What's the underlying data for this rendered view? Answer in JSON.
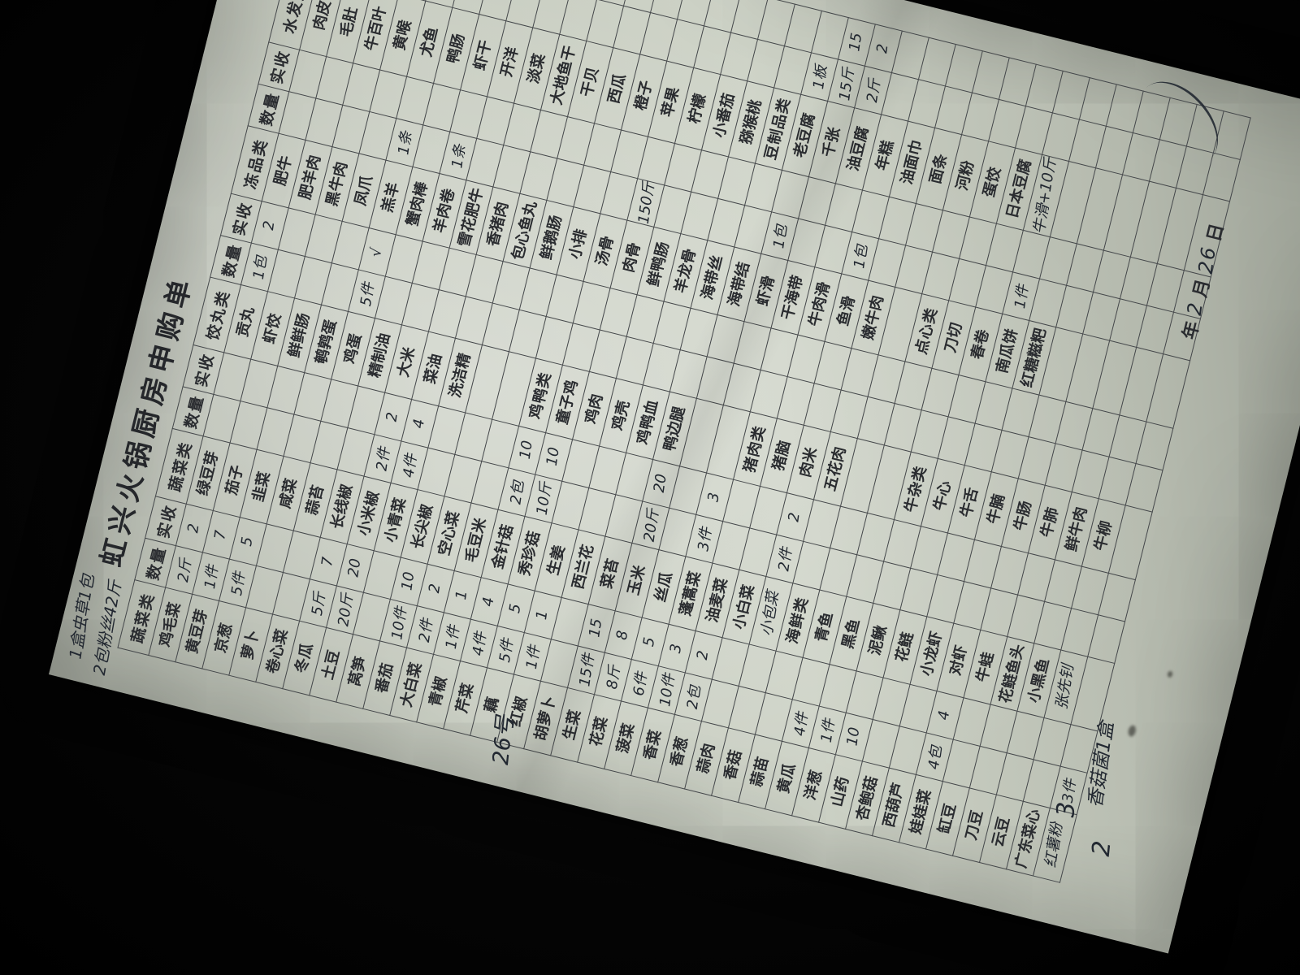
{
  "page": {
    "title": "虹兴火锅厨房申购单",
    "paper_color": "#c9cfc3",
    "ink_color": "#222831",
    "print_color": "#2a2c30"
  },
  "margin_notes": {
    "top_left_1": "1盒虫草1包",
    "top_left_2": "2包粉丝42斤",
    "left_day": "26号",
    "bottom_digit_1": "3",
    "bottom_digit_2": "2",
    "bottom_note": "香菇菌1盒"
  },
  "date_line": {
    "year_label": "年",
    "month_value": "2",
    "month_label": "月",
    "day_value": "26",
    "day_label": "日"
  },
  "table": {
    "header_groups": [
      {
        "category": "蔬菜类",
        "qty": "数量",
        "recv": "实收"
      },
      {
        "category": "蔬菜类",
        "qty": "数量",
        "recv": "实收"
      },
      {
        "category": "饺丸类",
        "qty": "数量",
        "recv": "实收"
      },
      {
        "category": "冻品类",
        "qty": "数量",
        "recv": "实收"
      },
      {
        "category": "水发类",
        "qty": "数量",
        "recv": "实收"
      }
    ],
    "rows": [
      [
        "鸡毛菜",
        "2斤",
        "2",
        "绿豆芽",
        "",
        "",
        "贡丸",
        "1包",
        "2",
        "肥牛",
        "",
        "",
        "肉皮",
        "",
        ""
      ],
      [
        "黄豆芽",
        "1件",
        "7",
        "茄子",
        "",
        "",
        "虾饺",
        "",
        "",
        "肥羊肉",
        "",
        "",
        "毛肚",
        "",
        ""
      ],
      [
        "京葱",
        "5件",
        "5",
        "韭菜",
        "",
        "",
        "鲜鲜肠",
        "",
        "",
        "黑牛肉",
        "",
        "",
        "牛百叶",
        "",
        ""
      ],
      [
        "萝卜",
        "",
        "",
        "咸菜",
        "",
        "",
        "鹌鹑蛋",
        "",
        "",
        "凤爪",
        "",
        "",
        "黄喉",
        "",
        ""
      ],
      [
        "卷心菜",
        "",
        "",
        "蒜苔",
        "",
        "",
        "鸡蛋",
        "5件",
        "√",
        "羔羊",
        "1条",
        "",
        "尤鱼",
        "",
        ""
      ],
      [
        "冬瓜",
        "5斤",
        "7",
        "长线椒",
        "",
        "",
        "精制油",
        "",
        "",
        "蟹肉棒",
        "",
        "",
        "鸭肠",
        "",
        ""
      ],
      [
        "土豆",
        "20斤",
        "20",
        "小米椒",
        "2件",
        "2",
        "大米",
        "",
        "",
        "羊肉卷",
        "1条",
        "",
        "虾干",
        "",
        ""
      ],
      [
        "莴笋",
        "",
        "",
        "小青菜",
        "4件",
        "4",
        "菜油",
        "",
        "",
        "雪花肥牛",
        "",
        "",
        "开洋",
        "",
        ""
      ],
      [
        "番茄",
        "10件",
        "10",
        "长尖椒",
        "",
        "",
        "洗洁精",
        "",
        "",
        "香猪肉",
        "",
        "",
        "淡菜",
        "",
        ""
      ],
      [
        "大白菜",
        "2件",
        "2",
        "空心菜",
        "",
        "",
        "",
        "",
        "",
        "包心鱼丸",
        "",
        "",
        "大地鱼干",
        "",
        ""
      ],
      [
        "青椒",
        "1件",
        "1",
        "毛豆米",
        "",
        "",
        "",
        "",
        "",
        "鲜鹅肠",
        "",
        "",
        "干贝",
        "",
        ""
      ],
      [
        "芹菜",
        "4件",
        "4",
        "金针菇",
        "2包",
        "10",
        "#鸡鸭类",
        "",
        "",
        "小排",
        "",
        "",
        "西瓜",
        "",
        ""
      ],
      [
        "藕",
        "5件",
        "5",
        "秀珍菇",
        "10斤",
        "10",
        "童子鸡",
        "",
        "",
        "汤骨",
        "",
        "",
        "橙子",
        "",
        ""
      ],
      [
        "红椒",
        "1件",
        "1",
        "生姜",
        "",
        "",
        "鸡肉",
        "",
        "",
        "肉骨",
        "150斤",
        "",
        "苹果",
        "",
        ""
      ],
      [
        "胡萝卜",
        "",
        "",
        "西兰花",
        "",
        "",
        "鸡壳",
        "",
        "",
        "鲜鸭肠",
        "",
        "",
        "柠檬",
        "",
        ""
      ],
      [
        "生菜",
        "15件",
        "15",
        "菜苔",
        "",
        "",
        "鸡鸭血",
        "",
        "",
        "羊龙骨",
        "",
        "",
        "小番茄",
        "",
        ""
      ],
      [
        "花菜",
        "8斤",
        "8",
        "玉米",
        "20斤",
        "20",
        "鸭边腿",
        "",
        "",
        "海带丝",
        "",
        "",
        "猕猴桃",
        "",
        ""
      ],
      [
        "菠菜",
        "6件",
        "5",
        "丝瓜",
        "",
        "",
        "",
        "",
        "",
        "海带结",
        "",
        "",
        "#豆制品类",
        "",
        ""
      ],
      [
        "香菜",
        "10件",
        "3",
        "蓬蒿菜",
        "3件",
        "3",
        "",
        "",
        "",
        "虾滑",
        "1包",
        "",
        "老豆腐",
        "1板",
        ""
      ],
      [
        "香葱",
        "2包",
        "2",
        "油麦菜",
        "",
        "",
        "#猪肉类",
        "",
        "",
        "干海带",
        "",
        "",
        "千张",
        "15斤",
        "15"
      ],
      [
        "蒜肉",
        "",
        "",
        "小白菜",
        "",
        "",
        "猪脑",
        "",
        "",
        "牛肉滑",
        "",
        "",
        "油豆腐",
        "2斤",
        "2"
      ],
      [
        "香菇",
        "",
        "",
        "~小包菜",
        "2件",
        "2",
        "肉米",
        "",
        "",
        "鱼滑",
        "1包",
        "",
        "年糕",
        "",
        ""
      ],
      [
        "蒜苗",
        "",
        "",
        "#海鲜类",
        "",
        "",
        "五花肉",
        "",
        "",
        "嫩牛肉",
        "",
        "",
        "油面巾",
        "",
        ""
      ],
      [
        "黄瓜",
        "4件",
        "",
        "青鱼",
        "",
        "",
        "",
        "",
        "",
        "",
        "",
        "",
        "面条",
        "",
        ""
      ],
      [
        "洋葱",
        "1件",
        "",
        "黑鱼",
        "",
        "",
        "",
        "",
        "",
        "#点心类",
        "",
        "",
        "河粉",
        "",
        ""
      ],
      [
        "山药",
        "10",
        "",
        "泥鳅",
        "",
        "",
        "#牛杂类",
        "",
        "",
        "刀切",
        "",
        "",
        "蛋饺",
        "",
        ""
      ],
      [
        "杏鲍菇",
        "",
        "",
        "花鲢",
        "",
        "",
        "牛心",
        "",
        "",
        "春卷",
        "",
        "",
        "日本豆腐",
        "",
        ""
      ],
      [
        "西葫芦",
        "",
        "",
        "小龙虾",
        "",
        "",
        "牛舌",
        "",
        "",
        "南瓜饼",
        "1件",
        "",
        "~牛滑+10斤",
        "",
        ""
      ],
      [
        "娃娃菜",
        "4包",
        "4",
        "对虾",
        "",
        "",
        "牛腩",
        "",
        "",
        "红糖糍粑",
        "",
        "",
        "",
        "",
        ""
      ],
      [
        "缸豆",
        "",
        "",
        "牛蛙",
        "",
        "",
        "牛肠",
        "",
        "",
        "",
        "",
        "",
        "",
        "",
        ""
      ],
      [
        "刀豆",
        "",
        "",
        "花鲢鱼头",
        "",
        "",
        "牛肺",
        "",
        "",
        "",
        "",
        "",
        "",
        "",
        ""
      ],
      [
        "云豆",
        "",
        "",
        "小黑鱼",
        "",
        "",
        "鲜牛肉",
        "",
        "",
        "",
        "",
        "",
        "",
        "",
        ""
      ],
      [
        "广东菜心",
        "",
        "",
        "~张先钊",
        "",
        "",
        "牛柳",
        "",
        "",
        "",
        "",
        "",
        "",
        "",
        ""
      ],
      [
        "~红薯粉",
        "3件",
        "",
        "",
        "",
        "",
        "",
        "",
        "",
        "",
        "",
        "",
        "",
        "",
        ""
      ]
    ]
  }
}
